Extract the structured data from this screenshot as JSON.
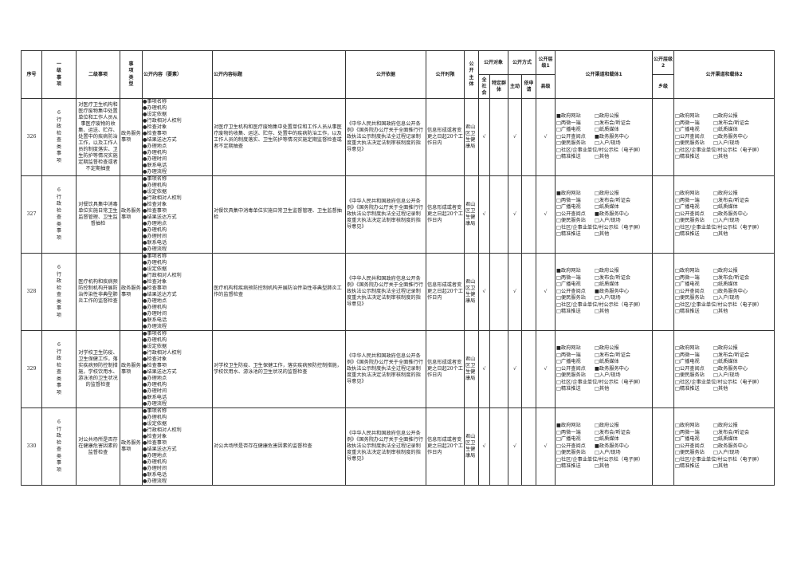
{
  "headers": {
    "seq": "序号",
    "level1": "一级事项",
    "level2": "二级事项",
    "type": "事项类型",
    "content": "公开内容（要素）",
    "title": "公开内容标题",
    "basis": "公开依据",
    "time_limit": "公开时限",
    "subject": "公开主体",
    "target": "公开对象",
    "target_all": "全社会",
    "target_specific": "特定群体",
    "method": "公开方式",
    "method_active": "主动",
    "method_apply": "依申请",
    "tier1": "公开层级1",
    "tier1_county": "县级",
    "channel1": "公开渠道和载体1",
    "tier2": "公开层级2",
    "tier2_town": "乡级",
    "channel2": "公开渠道和载体2"
  },
  "content_items": [
    "事项名称",
    "办理机构",
    "设定依据",
    "行政相对人权利",
    "检查对象",
    "检查事项",
    "结果送达方式",
    "办理地点",
    "办理机构",
    "办理时间",
    "联系电话",
    "办理流程"
  ],
  "channels": [
    "政府网站",
    "政府公报",
    "两微一端",
    "发布会/听证会",
    "广播电视",
    "纸质媒体",
    "公开查阅点",
    "政务服务中心",
    "便民服务站",
    "入户/现场",
    "社区/企事业单位/村公示栏（电子屏）",
    "精准推送",
    "其他"
  ],
  "channel1_checked": [
    "政府网站",
    "政务服务中心"
  ],
  "channel2_checked": [],
  "rows": [
    {
      "seq": "326",
      "level1": "6行政检查类事项",
      "level2": "对医疗卫生机构和医疗废物集中处置单位和工作人员从事医疗废物的收集、运送、贮存、处置中的疾病防治工作，以及工作人员的制度落实、卫生防护等情况实施定期监督检查或者不定期抽查",
      "type": "政务服务事项",
      "title": "对医疗卫生机构和医疗废物集中处置单位和工作人员从事医疗废物的收集、运送、贮存、处置中的疾病防治工作，以及工作人员的制度落实、卫生防护等情况实施定期监督检查或者不定期抽查",
      "basis": "《中华人民共和国政府信息公开条例》《国务院办公厅关于全面推行行政执法公示制度执法全过程记录制度重大执法决定法制审核制度的指导意见》",
      "time_limit": "信息形成或者变更之日起20个工作日内",
      "subject": "君山区卫生健康局",
      "all": "√",
      "specific": "",
      "active": "√",
      "apply": "",
      "county": "√",
      "town": ""
    },
    {
      "seq": "327",
      "level1": "6行政检查类事项",
      "level2": "对餐饮具集中消毒单位实施日常卫生监督管理、卫生监督抽检",
      "type": "政务服务事项",
      "title": "对餐饮具集中消毒单位实施日常卫生监督管理、卫生监督抽检",
      "basis": "《中华人民共和国政府信息公开条例》《国务院办公厅关于全面推行行政执法公示制度执法全过程记录制度重大执法决定法制审核制度的指导意见》",
      "time_limit": "信息形成或者变更之日起20个工作日内",
      "subject": "君山区卫生健康局",
      "all": "√",
      "specific": "",
      "active": "√",
      "apply": "",
      "county": "√",
      "town": ""
    },
    {
      "seq": "328",
      "level1": "6行政检查类事项",
      "level2": "医疗机构和疾病预防控制机构开展防治传染性非典型肺炎工作的监督检查",
      "type": "政务服务事项",
      "title": "医疗机构和疾病预防控制机构开展防治传染性非典型肺炎工作的监督检查",
      "basis": "《中华人民共和国政府信息公开条例》《国务院办公厅关于全面推行行政执法公示制度执法全过程记录制度重大执法决定法制审核制度的指导意见》",
      "time_limit": "信息形成或者变更之日起20个工作日内",
      "subject": "君山区卫生健康局",
      "all": "√",
      "specific": "",
      "active": "√",
      "apply": "",
      "county": "√",
      "town": ""
    },
    {
      "seq": "329",
      "level1": "6行政检查类事项",
      "level2": "对学校卫生防疫、卫生保健工作，落实疾病预防控制措施，学校饮用水、游泳池的卫生状况的监督检查",
      "type": "政务服务事项",
      "title": "对学校卫生防疫、卫生保健工作，落实疾病预防控制措施，学校饮用水、游泳池的卫生状况的监督检查",
      "basis": "《中华人民共和国政府信息公开条例》《国务院办公厅关于全面推行行政执法公示制度执法全过程记录制度重大执法决定法制审核制度的指导意见》",
      "time_limit": "信息形成或者变更之日起20个工作日内",
      "subject": "君山区卫生健康局",
      "all": "√",
      "specific": "",
      "active": "√",
      "apply": "",
      "county": "√",
      "town": ""
    },
    {
      "seq": "330",
      "level1": "6行政检查类事项",
      "level2": "对公共场所是否存在健康危害因素的监督检查",
      "type": "政务服务事项",
      "title": "对公共场所是否存在健康危害因素的监督检查",
      "basis": "《中华人民共和国政府信息公开条例》《国务院办公厅关于全面推行行政执法公示制度执法全过程记录制度重大执法决定法制审核制度的指导意见》",
      "time_limit": "信息形成或者变更之日起20个工作日内",
      "subject": "君山区卫生健康局",
      "all": "√",
      "specific": "",
      "active": "√",
      "apply": "",
      "county": "√",
      "town": ""
    }
  ]
}
